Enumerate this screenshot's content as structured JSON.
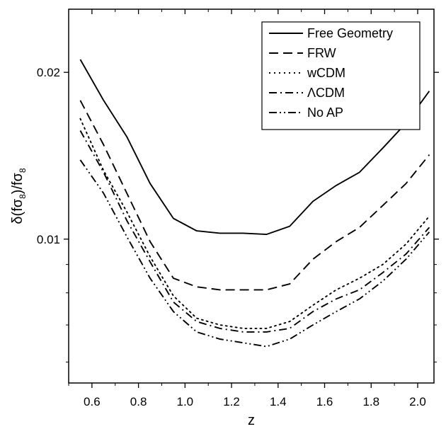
{
  "chart_data": {
    "type": "line",
    "xlabel": "z",
    "ylabel": "δ(fσ",
    "ylabel_sub1": "8",
    "ylabel_mid": ")/fσ",
    "ylabel_sub2": "8",
    "xlim": [
      0.5,
      2.07
    ],
    "ylim_log": [
      0.0055,
      0.026
    ],
    "y_scale": "log",
    "x_ticks": [
      0.6,
      0.8,
      1.0,
      1.2,
      1.4,
      1.6,
      1.8,
      2.0
    ],
    "x_tick_labels": [
      "0.6",
      "0.8",
      "1.0",
      "1.2",
      "1.4",
      "1.6",
      "1.8",
      "2.0"
    ],
    "y_ticks": [
      0.01,
      0.02
    ],
    "y_tick_labels": [
      "0.01",
      "0.02"
    ],
    "legend_position": "top-right",
    "x": [
      0.55,
      0.65,
      0.75,
      0.85,
      0.95,
      1.05,
      1.15,
      1.25,
      1.35,
      1.45,
      1.55,
      1.65,
      1.75,
      1.85,
      1.95,
      2.05
    ],
    "series": [
      {
        "name": "Free Geometry",
        "style": "solid",
        "values": [
          0.0211,
          0.0178,
          0.0153,
          0.0126,
          0.0109,
          0.01035,
          0.01025,
          0.01025,
          0.0102,
          0.01055,
          0.0117,
          0.0125,
          0.0132,
          0.0146,
          0.0162,
          0.0185
        ]
      },
      {
        "name": "FRW",
        "style": "dashed",
        "values": [
          0.0178,
          0.0148,
          0.0121,
          0.0099,
          0.0085,
          0.0082,
          0.0081,
          0.0081,
          0.0081,
          0.0083,
          0.0092,
          0.0099,
          0.0105,
          0.0115,
          0.0126,
          0.0142
        ]
      },
      {
        "name": "wCDM",
        "style": "dotted",
        "values": [
          0.0165,
          0.0133,
          0.0112,
          0.0093,
          0.0079,
          0.0072,
          0.007,
          0.0069,
          0.0069,
          0.0071,
          0.0076,
          0.0081,
          0.0085,
          0.009,
          0.0098,
          0.011
        ]
      },
      {
        "name": "ΛCDM",
        "style": "dashdot",
        "values": [
          0.0157,
          0.0132,
          0.0108,
          0.0091,
          0.0077,
          0.0071,
          0.0069,
          0.0068,
          0.0068,
          0.0069,
          0.0074,
          0.0078,
          0.0081,
          0.0087,
          0.0094,
          0.0105
        ]
      },
      {
        "name": "No AP",
        "style": "dashdotdot",
        "values": [
          0.0139,
          0.0121,
          0.0101,
          0.0085,
          0.0074,
          0.0068,
          0.0066,
          0.0065,
          0.0064,
          0.0066,
          0.007,
          0.0074,
          0.0078,
          0.0084,
          0.0092,
          0.0103
        ]
      }
    ]
  }
}
